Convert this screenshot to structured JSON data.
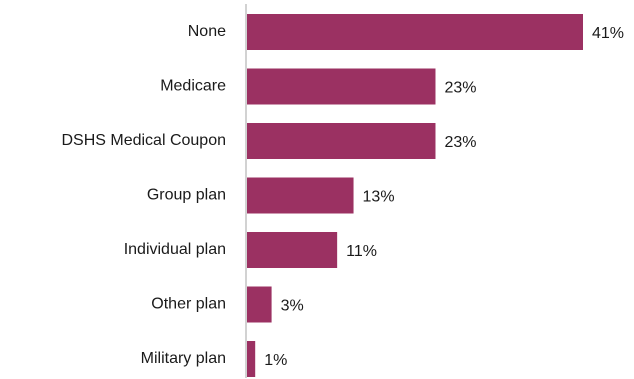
{
  "chart_data": {
    "type": "bar",
    "orientation": "horizontal",
    "categories": [
      "None",
      "Medicare",
      "DSHS Medical Coupon",
      "Group plan",
      "Individual plan",
      "Other plan",
      "Military plan"
    ],
    "values": [
      41,
      23,
      23,
      13,
      11,
      3,
      1
    ],
    "value_labels": [
      "41%",
      "23%",
      "23%",
      "13%",
      "11%",
      "3%",
      "1%"
    ],
    "unit": "%",
    "xlim": [
      0,
      41
    ],
    "grid": false,
    "legend": "none",
    "bar_color": "#9b3162",
    "axis_color": "#a6a6a6"
  }
}
